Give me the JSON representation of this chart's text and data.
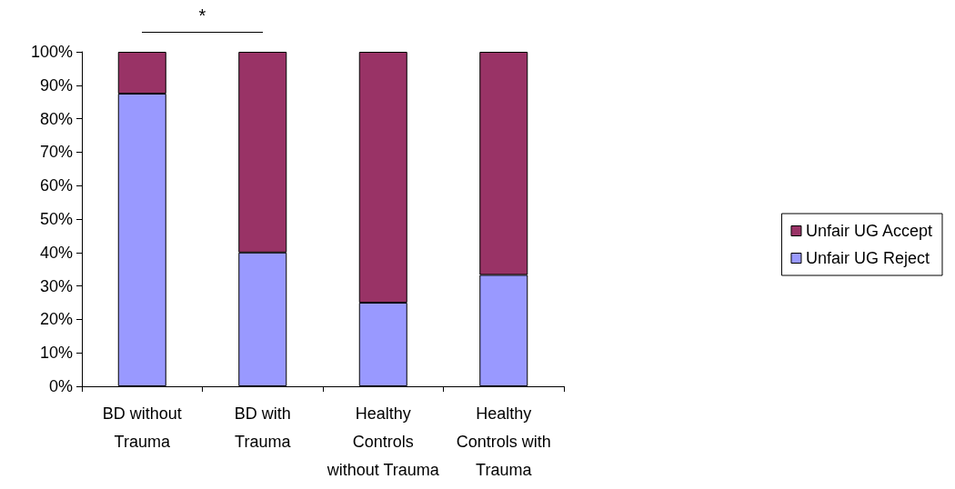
{
  "chart_data": {
    "type": "bar",
    "stacked": true,
    "categories": [
      "BD without\nTrauma",
      "BD with\nTrauma",
      "Healthy\nControls\nwithout Trauma",
      "Healthy\nControls with\nTrauma"
    ],
    "series": [
      {
        "name": "Unfair UG Reject",
        "color": "#9999ff",
        "values": [
          87.5,
          40,
          25,
          33.3
        ]
      },
      {
        "name": "Unfair UG Accept",
        "color": "#993366",
        "values": [
          12.5,
          60,
          75,
          66.7
        ]
      }
    ],
    "ylim": [
      0,
      100
    ],
    "yticks": [
      {
        "value": 0,
        "label": "0%"
      },
      {
        "value": 10,
        "label": "10%"
      },
      {
        "value": 20,
        "label": "20%"
      },
      {
        "value": 30,
        "label": "30%"
      },
      {
        "value": 40,
        "label": "40%"
      },
      {
        "value": 50,
        "label": "50%"
      },
      {
        "value": 60,
        "label": "60%"
      },
      {
        "value": 70,
        "label": "70%"
      },
      {
        "value": 80,
        "label": "80%"
      },
      {
        "value": 90,
        "label": "90%"
      },
      {
        "value": 100,
        "label": "100%"
      }
    ],
    "annotations": [
      "*"
    ],
    "grid": false,
    "legend": "right"
  }
}
